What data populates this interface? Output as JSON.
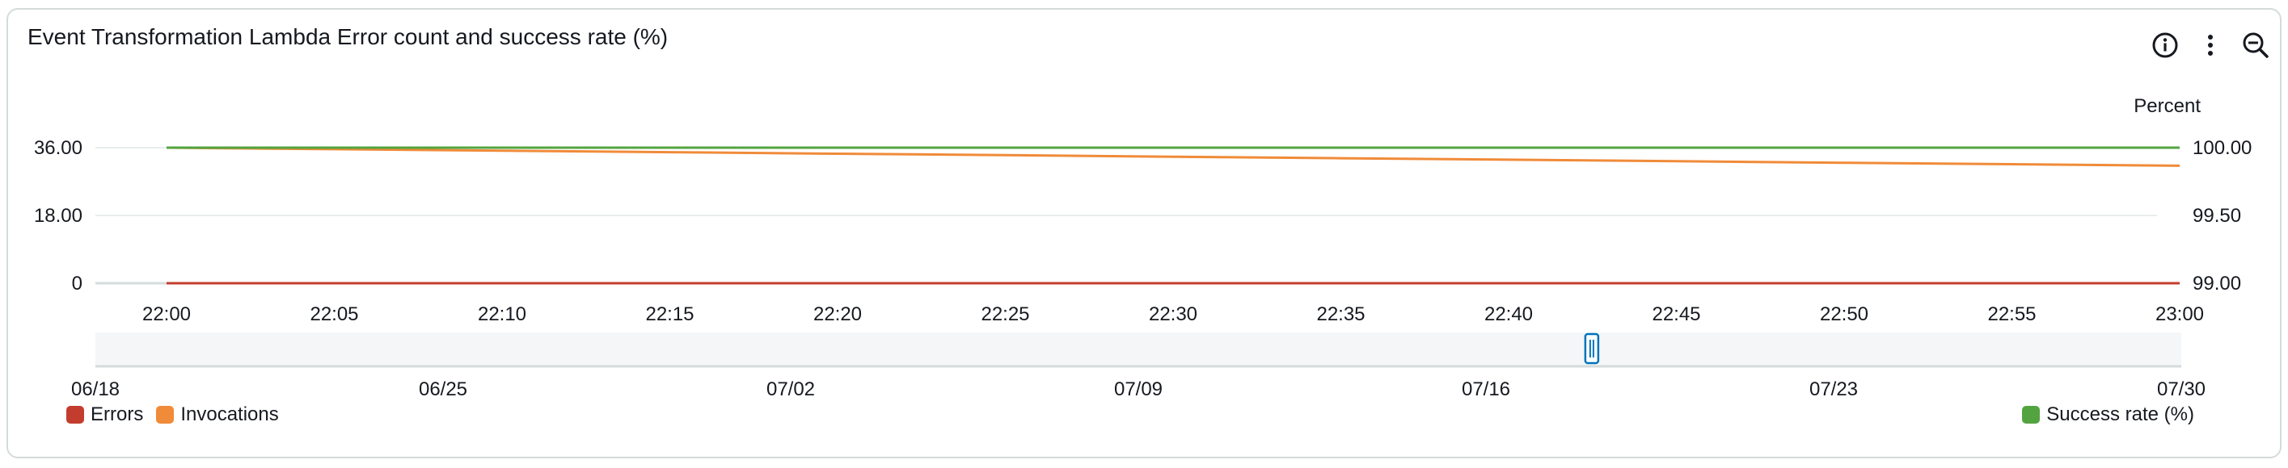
{
  "widget": {
    "title": "Event Transformation Lambda Error count and success rate (%)"
  },
  "icons": {
    "info": "info-icon",
    "more": "more-vertical-icon",
    "zoom": "zoom-out-icon"
  },
  "colors": {
    "errors": "#c33d2e",
    "invocations": "#f08b39",
    "success_rate": "#53a440",
    "grid": "#eaeded",
    "axis": "#d5dbdb",
    "text": "#16191f",
    "navigator_bg": "#f4f6f8",
    "handle": "#0073bb"
  },
  "legend": {
    "left": [
      {
        "name": "Errors",
        "color": "#c33d2e"
      },
      {
        "name": "Invocations",
        "color": "#f08b39"
      }
    ],
    "right": [
      {
        "name": "Success rate (%)",
        "color": "#53a440"
      }
    ]
  },
  "chart_data": {
    "type": "line",
    "title": "Event Transformation Lambda Error count and success rate (%)",
    "x": [
      "22:00",
      "22:05",
      "22:10",
      "22:15",
      "22:20",
      "22:25",
      "22:30",
      "22:35",
      "22:40",
      "22:45",
      "22:50",
      "22:55",
      "23:00"
    ],
    "left_axis": {
      "label": "",
      "ylim": [
        0,
        36
      ],
      "ticks": [
        "0",
        "18.00",
        "36.00"
      ]
    },
    "right_axis": {
      "label": "Percent",
      "ylim": [
        99.0,
        100.0
      ],
      "ticks": [
        "99.00",
        "99.50",
        "100.00"
      ]
    },
    "series": [
      {
        "name": "Errors",
        "axis": "left",
        "values": [
          0,
          0,
          0,
          0,
          0,
          0,
          0,
          0,
          0,
          0,
          0,
          0,
          0
        ]
      },
      {
        "name": "Invocations",
        "axis": "left",
        "values": [
          36,
          35.6,
          35.2,
          34.8,
          34.4,
          34.0,
          33.6,
          33.2,
          32.8,
          32.4,
          32.0,
          31.6,
          31.2
        ]
      },
      {
        "name": "Success rate (%)",
        "axis": "right",
        "values": [
          100,
          100,
          100,
          100,
          100,
          100,
          100,
          100,
          100,
          100,
          100,
          100,
          100
        ]
      }
    ],
    "navigator": {
      "ticks": [
        "06/18",
        "06/25",
        "07/02",
        "07/09",
        "07/16",
        "07/23",
        "07/30"
      ],
      "selection_fraction": 0.717
    },
    "grid": true,
    "legend_position": "bottom"
  }
}
